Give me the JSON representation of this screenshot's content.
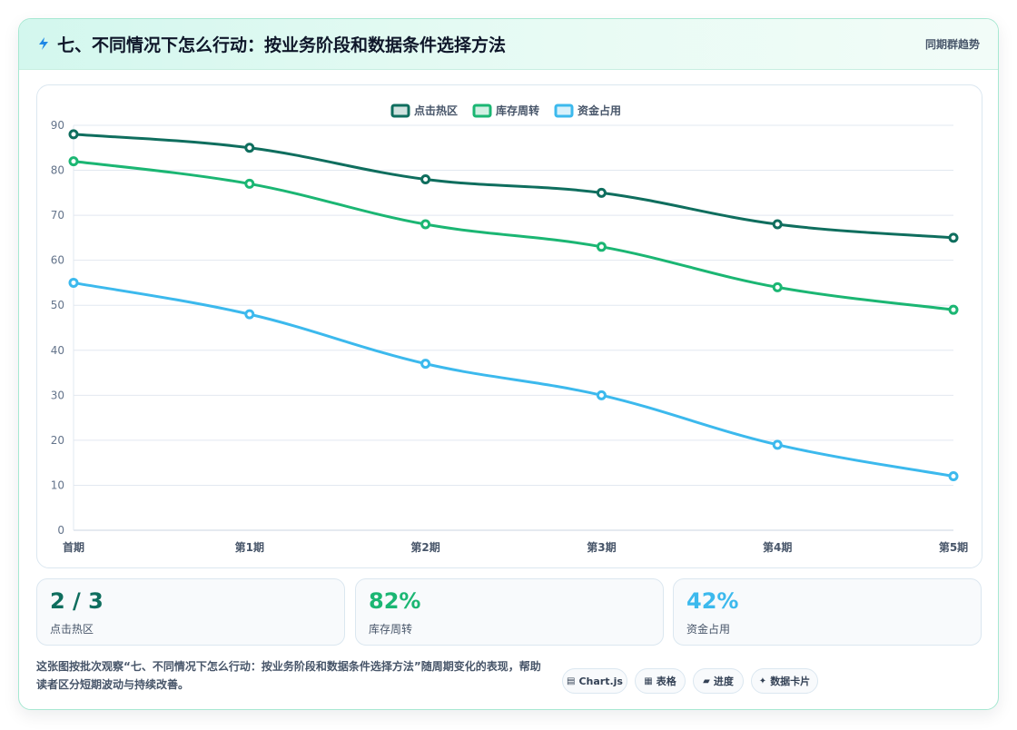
{
  "header": {
    "title": "七、不同情况下怎么行动：按业务阶段和数据条件选择方法",
    "right_label": "同期群趋势",
    "icon": "lightning-icon"
  },
  "chart_data": {
    "type": "line",
    "categories": [
      "首期",
      "第1期",
      "第2期",
      "第3期",
      "第4期",
      "第5期"
    ],
    "series": [
      {
        "name": "点击热区",
        "values": [
          88,
          85,
          78,
          75,
          68,
          65
        ],
        "color": "#0f6e5e"
      },
      {
        "name": "库存周转",
        "values": [
          82,
          77,
          68,
          63,
          54,
          49
        ],
        "color": "#1bb673"
      },
      {
        "name": "资金占用",
        "values": [
          55,
          48,
          37,
          30,
          19,
          12
        ],
        "color": "#3cb9ed"
      }
    ],
    "ylim": [
      0,
      90
    ],
    "yticks": [
      0,
      10,
      20,
      30,
      40,
      50,
      60,
      70,
      80,
      90
    ],
    "legend_position": "top-center",
    "grid": true
  },
  "stats": [
    {
      "value": "2 / 3",
      "label": "点击热区",
      "color": "#0f6e5e"
    },
    {
      "value": "82%",
      "label": "库存周转",
      "color": "#1bb673"
    },
    {
      "value": "42%",
      "label": "资金占用",
      "color": "#3cb9ed"
    }
  ],
  "caption": "这张图按批次观察“七、不同情况下怎么行动：按业务阶段和数据条件选择方法”随周期变化的表现，帮助读者区分短期波动与持续改善。",
  "pills": [
    {
      "icon": "▤",
      "label": "Chart.js"
    },
    {
      "icon": "▦",
      "label": "表格"
    },
    {
      "icon": "▰",
      "label": "进度"
    },
    {
      "icon": "✦",
      "label": "数据卡片"
    }
  ]
}
